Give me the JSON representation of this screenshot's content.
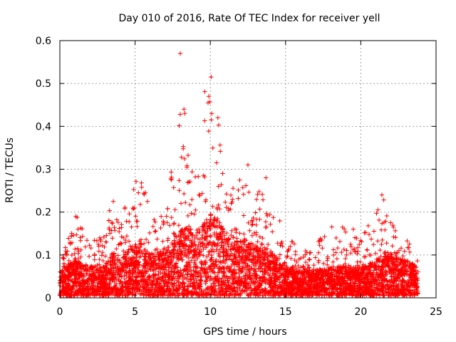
{
  "chart_data": {
    "type": "scatter",
    "title": "Day 010 of 2016, Rate Of TEC Index for receiver yell",
    "xlabel": "GPS time / hours",
    "ylabel": "ROTI / TECUs",
    "xlim": [
      0,
      25
    ],
    "ylim": [
      0,
      0.6
    ],
    "x_ticks": [
      0,
      5,
      10,
      15,
      20,
      25
    ],
    "y_ticks": [
      0,
      0.1,
      0.2,
      0.3,
      0.4,
      0.5,
      0.6
    ],
    "x_tick_labels": [
      "0",
      "5",
      "10",
      "15",
      "20",
      "25"
    ],
    "y_tick_labels": [
      "0",
      "0.1",
      "0.2",
      "0.3",
      "0.4",
      "0.5",
      "0.6"
    ],
    "grid": true,
    "marker": "plus",
    "color": "#ff0000",
    "series": [
      {
        "name": "ROTI",
        "envelope_note": "dense scatter; upper envelope sampled per hour (hour, typical, peak)",
        "hourly_profile": [
          [
            0.0,
            0.04,
            0.08
          ],
          [
            1.0,
            0.055,
            0.2
          ],
          [
            2.0,
            0.045,
            0.13
          ],
          [
            3.0,
            0.045,
            0.15
          ],
          [
            3.5,
            0.07,
            0.25
          ],
          [
            4.0,
            0.06,
            0.21
          ],
          [
            5.0,
            0.08,
            0.29
          ],
          [
            5.5,
            0.075,
            0.28
          ],
          [
            6.0,
            0.065,
            0.2
          ],
          [
            7.0,
            0.07,
            0.2
          ],
          [
            8.0,
            0.1,
            0.44
          ],
          [
            8.5,
            0.11,
            0.38
          ],
          [
            9.0,
            0.1,
            0.32
          ],
          [
            9.5,
            0.11,
            0.47
          ],
          [
            10.0,
            0.13,
            0.515
          ],
          [
            10.5,
            0.12,
            0.42
          ],
          [
            11.0,
            0.1,
            0.28
          ],
          [
            12.0,
            0.09,
            0.31
          ],
          [
            13.0,
            0.08,
            0.28
          ],
          [
            14.0,
            0.07,
            0.23
          ],
          [
            15.0,
            0.05,
            0.16
          ],
          [
            16.0,
            0.04,
            0.11
          ],
          [
            17.0,
            0.04,
            0.12
          ],
          [
            18.0,
            0.045,
            0.19
          ],
          [
            19.0,
            0.045,
            0.16
          ],
          [
            20.0,
            0.045,
            0.14
          ],
          [
            21.0,
            0.055,
            0.2
          ],
          [
            21.5,
            0.07,
            0.24
          ],
          [
            22.0,
            0.065,
            0.18
          ],
          [
            23.0,
            0.055,
            0.14
          ],
          [
            23.8,
            0.045,
            0.09
          ]
        ],
        "outliers": [
          [
            8.0,
            0.57
          ],
          [
            10.05,
            0.515
          ],
          [
            9.9,
            0.47
          ],
          [
            9.85,
            0.455
          ],
          [
            8.25,
            0.44
          ],
          [
            8.3,
            0.43
          ],
          [
            10.5,
            0.42
          ],
          [
            13.7,
            0.28
          ],
          [
            12.5,
            0.31
          ],
          [
            21.4,
            0.24
          ],
          [
            19.5,
            0.16
          ]
        ]
      }
    ]
  }
}
